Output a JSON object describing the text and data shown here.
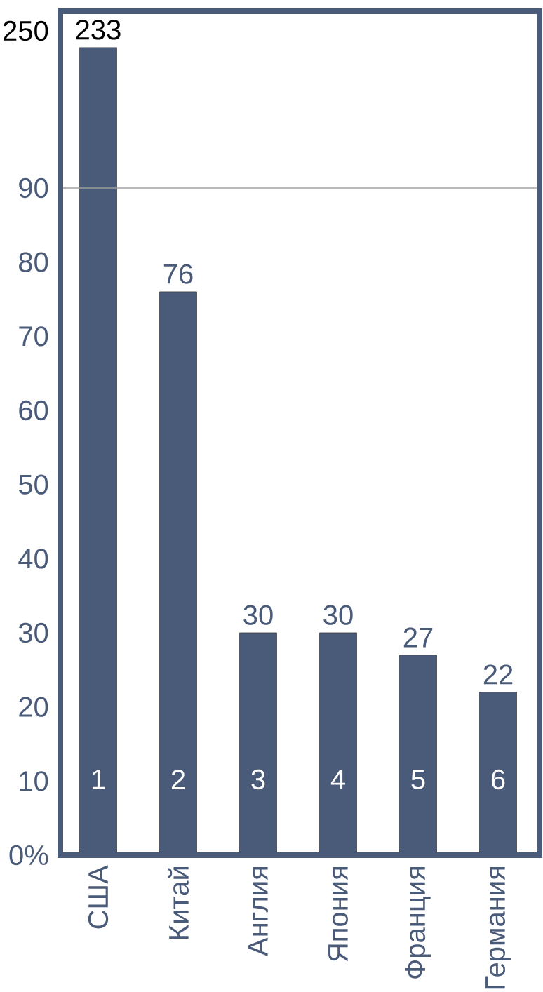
{
  "chart_data": [
    {
      "type": "bar",
      "categories": [
        null,
        null,
        null,
        null,
        null,
        null
      ],
      "values": [
        233,
        null,
        null,
        null,
        null,
        null
      ],
      "color": "#4a5a79",
      "ylim": [
        90,
        270
      ],
      "yticks": [
        90,
        250
      ],
      "data_labels": true
    },
    {
      "type": "bar",
      "categories": [
        "США",
        "Китай",
        "Англия",
        "Япония",
        "Франция",
        "Германия"
      ],
      "values": [
        90,
        76,
        30,
        30,
        27,
        22
      ],
      "color": "#4a5a79",
      "ylim": [
        0,
        90
      ],
      "yticks": [
        {
          "value": 0,
          "label": "0%"
        },
        10,
        20,
        30,
        40,
        50,
        60,
        70,
        80
      ],
      "value_labels": [
        null,
        "76",
        "30",
        "30",
        "27",
        "22"
      ],
      "annotations": [
        "1",
        "2",
        "3",
        "4",
        "5",
        "6"
      ],
      "ref_lines": [
        {
          "axis": "y",
          "value": 90,
          "color": "#a0a0a0"
        }
      ]
    }
  ]
}
